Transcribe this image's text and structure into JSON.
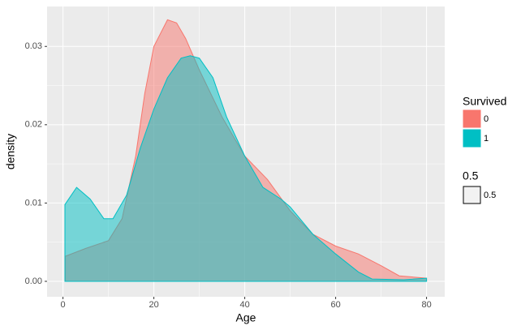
{
  "chart_data": {
    "type": "area",
    "x_label": "Age",
    "y_label": "density",
    "legend_title": "Survived",
    "alpha": 0.5,
    "alpha_legend": {
      "title": "0.5",
      "label": "0.5"
    },
    "series": [
      {
        "name": "0",
        "color": "#F8766D",
        "x": [
          0.5,
          5,
          10,
          13,
          16,
          18,
          20,
          23,
          25,
          27,
          30,
          35,
          40,
          45,
          50,
          55,
          60,
          65,
          70,
          74,
          80
        ],
        "values": [
          0.0032,
          0.0042,
          0.0052,
          0.008,
          0.016,
          0.024,
          0.03,
          0.0334,
          0.033,
          0.031,
          0.027,
          0.021,
          0.016,
          0.013,
          0.009,
          0.006,
          0.0045,
          0.0035,
          0.002,
          0.0007,
          0.0004
        ]
      },
      {
        "name": "1",
        "color": "#00BFC4",
        "x": [
          0.42,
          3,
          6,
          9,
          11,
          14,
          17,
          20,
          23,
          26,
          28,
          30,
          33,
          36,
          40,
          44,
          48,
          50,
          55,
          60,
          65,
          68,
          75,
          80
        ],
        "values": [
          0.0098,
          0.012,
          0.0105,
          0.008,
          0.008,
          0.011,
          0.017,
          0.022,
          0.026,
          0.0285,
          0.0288,
          0.0285,
          0.026,
          0.021,
          0.016,
          0.012,
          0.0105,
          0.0095,
          0.006,
          0.0035,
          0.0012,
          0.0003,
          0.0002,
          0.0004
        ]
      }
    ],
    "xlim": [
      -3.5,
      84
    ],
    "xticks": [
      0,
      20,
      40,
      60,
      80
    ],
    "ylim": [
      -0.00197,
      0.0351
    ],
    "yticks": [
      {
        "value": 0,
        "label": "0.00"
      },
      0.01,
      0.02,
      0.03
    ],
    "grid": true
  }
}
